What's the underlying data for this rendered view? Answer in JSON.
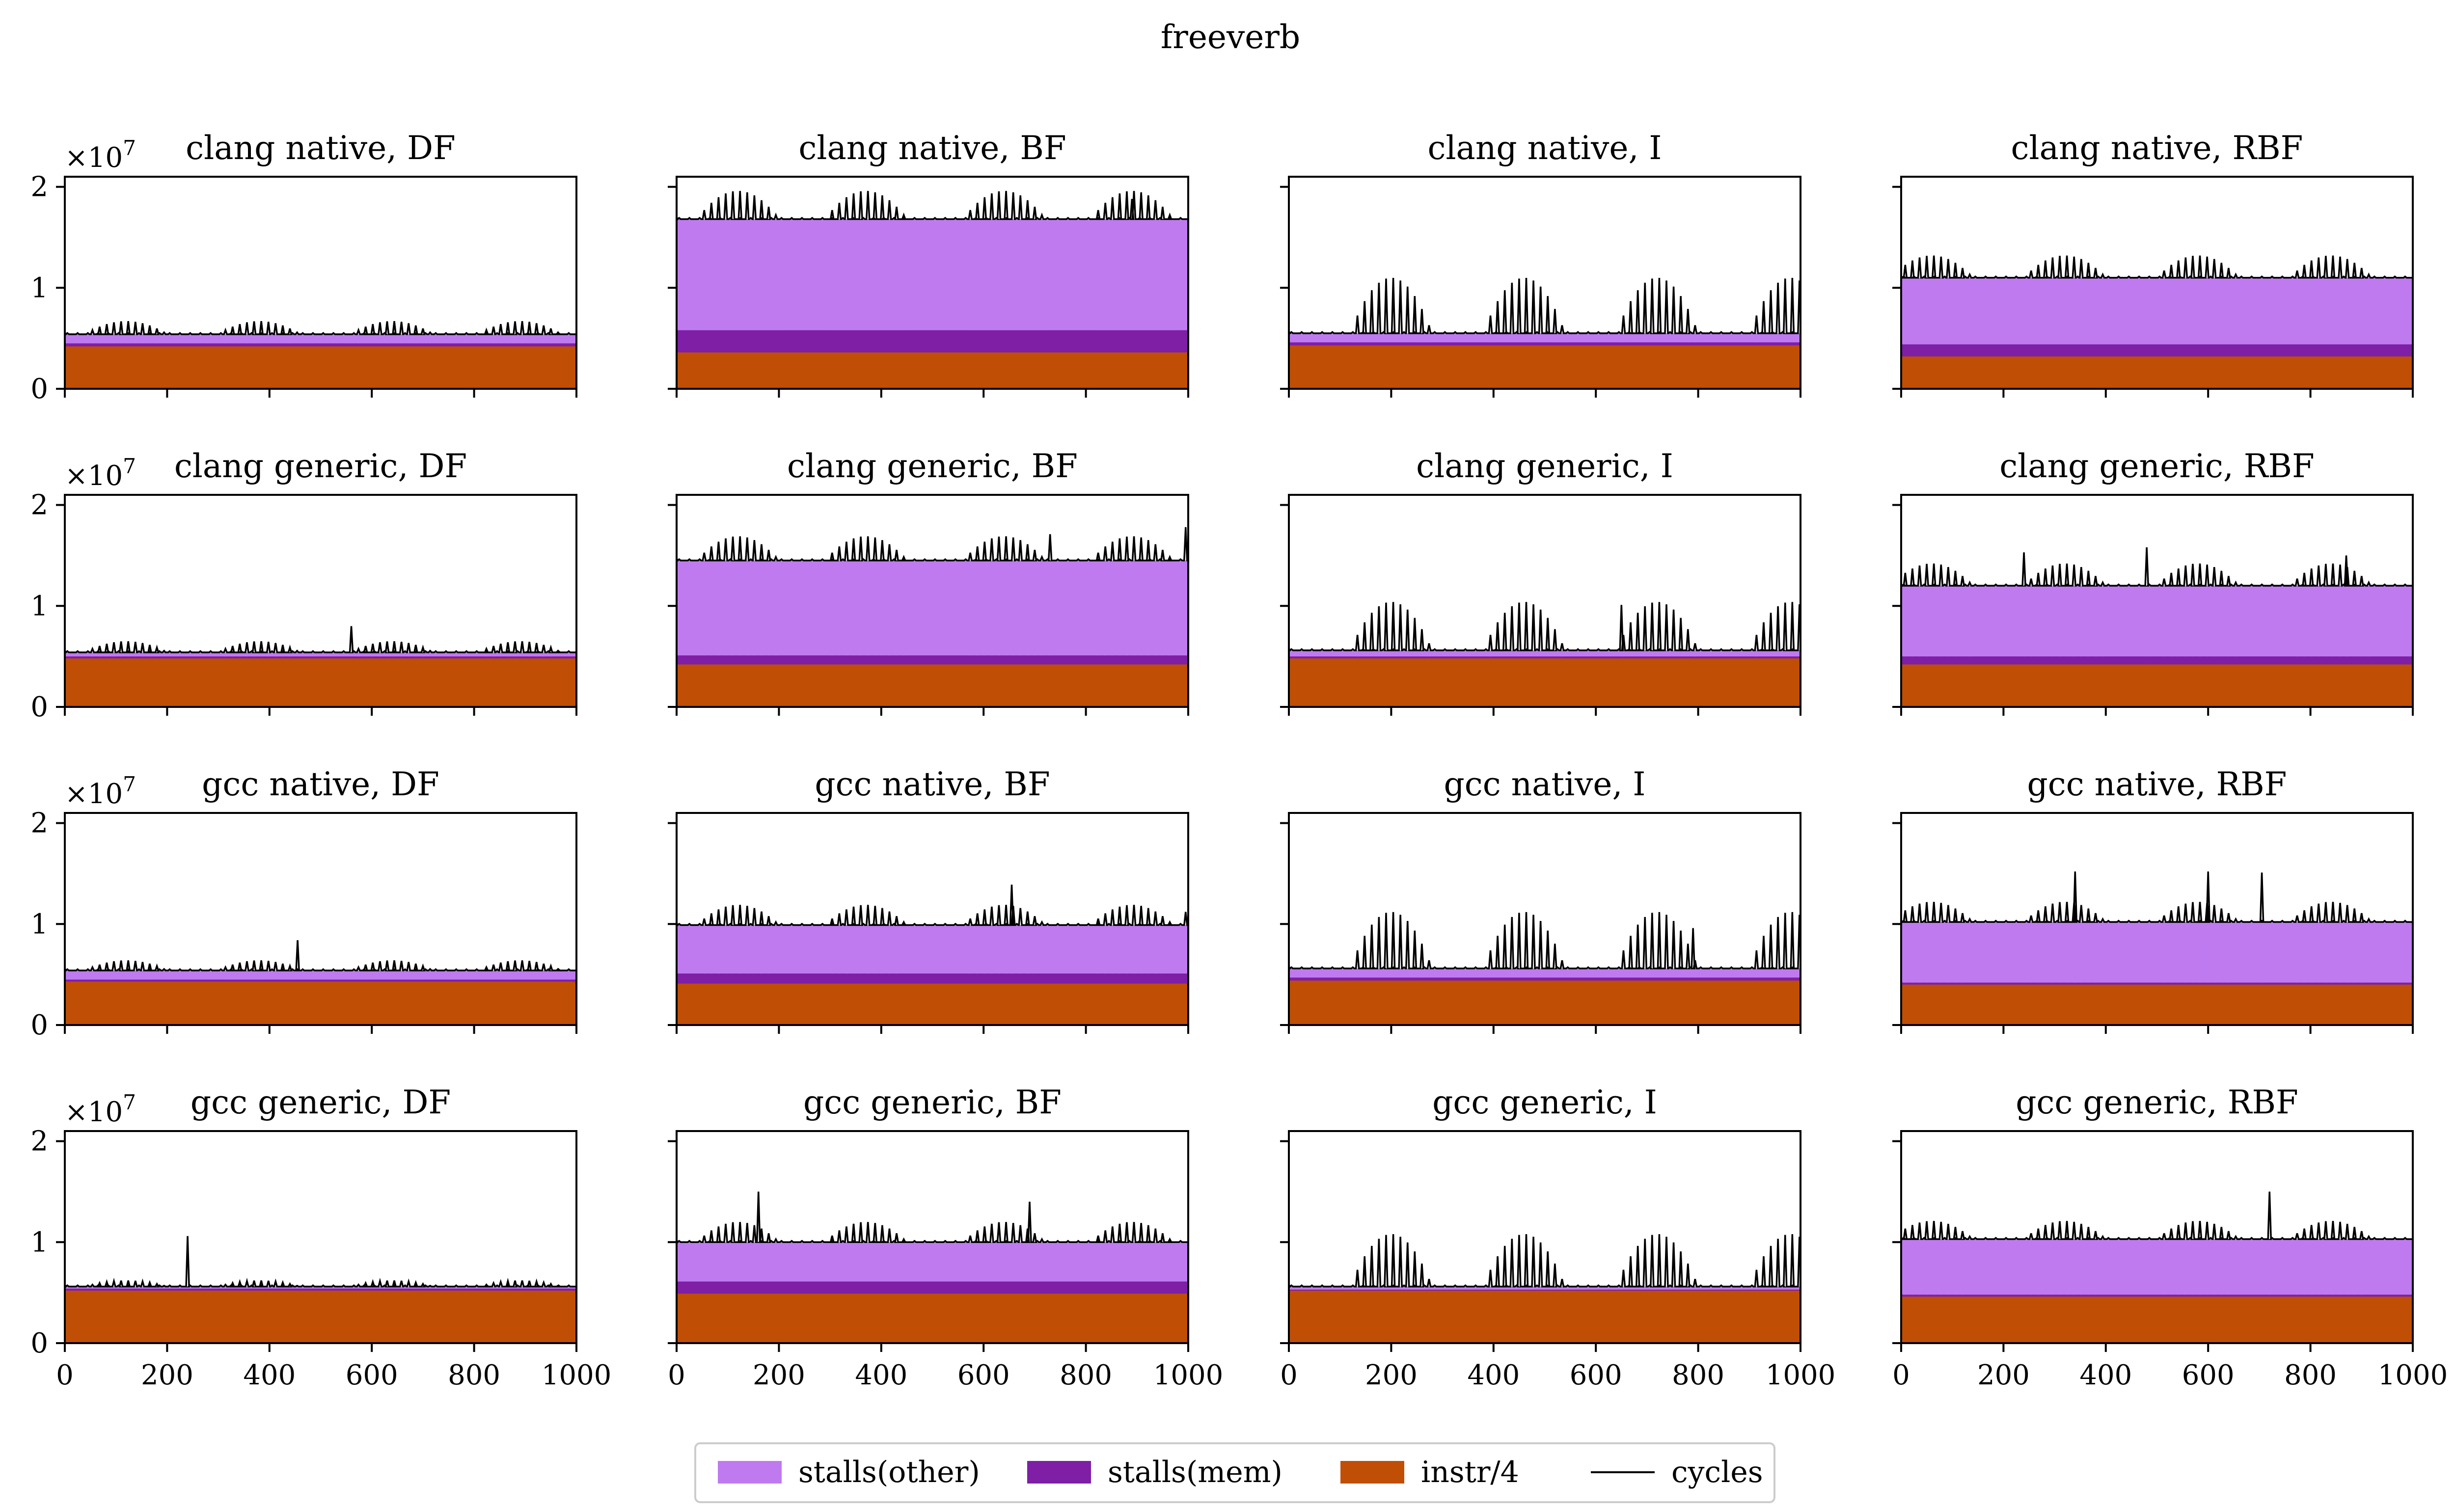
{
  "chart_data": {
    "type": "area",
    "title": "freeverb",
    "xlim": [
      0,
      1000
    ],
    "ylim": [
      0,
      21000000
    ],
    "x_ticks": [
      "0",
      "200",
      "400",
      "600",
      "800",
      "1000"
    ],
    "y_ticks": [
      "0",
      "1",
      "2"
    ],
    "y_tick_values": [
      0,
      10000000,
      20000000
    ],
    "y_multiplier": "×10",
    "y_multiplier_exp": "7",
    "legend": [
      {
        "name": "stalls(other)",
        "color": "#bf7af0",
        "kind": "area"
      },
      {
        "name": "stalls(mem)",
        "color": "#7e1fa6",
        "kind": "area"
      },
      {
        "name": "instr/4",
        "color": "#c04e05",
        "kind": "area"
      },
      {
        "name": "cycles",
        "color": "#000000",
        "kind": "line"
      }
    ],
    "colors": {
      "stalls_other": "#bf7af0",
      "stalls_mem": "#7e1fa6",
      "instr": "#c04e05",
      "cycles": "#000000"
    },
    "panels": [
      {
        "title": "clang native, DF",
        "instr": 4.2,
        "mem": 0.3,
        "cycles": 5.4,
        "burst": 1.3,
        "bursts": [
          120,
          380,
          640,
          890
        ],
        "spikes": []
      },
      {
        "title": "clang native, BF",
        "instr": 3.6,
        "mem": 2.2,
        "cycles": 16.8,
        "burst": 2.8,
        "bursts": [
          120,
          370,
          640,
          890
        ],
        "spikes": [
          [
            890,
            2.0
          ]
        ]
      },
      {
        "title": "clang native, I",
        "instr": 4.3,
        "mem": 0.3,
        "cycles": 5.5,
        "burst": 5.5,
        "bursts": [
          200,
          460,
          720,
          980
        ],
        "spikes": []
      },
      {
        "title": "clang native, RBF",
        "instr": 3.2,
        "mem": 1.2,
        "cycles": 11.0,
        "burst": 2.2,
        "bursts": [
          60,
          320,
          580,
          840
        ],
        "spikes": []
      },
      {
        "title": "clang generic, DF",
        "instr": 4.8,
        "mem": 0.2,
        "cycles": 5.4,
        "burst": 1.1,
        "bursts": [
          120,
          380,
          640,
          890
        ],
        "spikes": [
          [
            560,
            2.6
          ]
        ]
      },
      {
        "title": "clang generic, BF",
        "instr": 4.2,
        "mem": 0.9,
        "cycles": 14.5,
        "burst": 2.4,
        "bursts": [
          120,
          370,
          640,
          890
        ],
        "spikes": [
          [
            730,
            2.6
          ],
          [
            995,
            3.3
          ]
        ]
      },
      {
        "title": "clang generic, I",
        "instr": 4.8,
        "mem": 0.2,
        "cycles": 5.6,
        "burst": 4.8,
        "bursts": [
          200,
          460,
          720,
          980
        ],
        "spikes": [
          [
            650,
            4.5
          ]
        ]
      },
      {
        "title": "clang generic, RBF",
        "instr": 4.2,
        "mem": 0.8,
        "cycles": 12.0,
        "burst": 2.2,
        "bursts": [
          60,
          320,
          580,
          840
        ],
        "spikes": [
          [
            240,
            3.3
          ],
          [
            480,
            3.8
          ],
          [
            870,
            3.0
          ]
        ]
      },
      {
        "title": "gcc native, DF",
        "instr": 4.3,
        "mem": 0.2,
        "cycles": 5.4,
        "burst": 1.0,
        "bursts": [
          120,
          380,
          640,
          890
        ],
        "spikes": [
          [
            455,
            3.0
          ]
        ]
      },
      {
        "title": "gcc native, BF",
        "instr": 4.1,
        "mem": 1.0,
        "cycles": 9.9,
        "burst": 2.0,
        "bursts": [
          120,
          370,
          640,
          890
        ],
        "spikes": [
          [
            655,
            4.0
          ],
          [
            995,
            1.3
          ]
        ]
      },
      {
        "title": "gcc native, I",
        "instr": 4.4,
        "mem": 0.3,
        "cycles": 5.6,
        "burst": 5.6,
        "bursts": [
          200,
          460,
          720,
          980
        ],
        "spikes": [
          [
            790,
            4.0
          ]
        ]
      },
      {
        "title": "gcc native, RBF",
        "instr": 4.0,
        "mem": 0.2,
        "cycles": 10.2,
        "burst": 2.0,
        "bursts": [
          60,
          320,
          580,
          840
        ],
        "spikes": [
          [
            340,
            5.0
          ],
          [
            600,
            5.0
          ],
          [
            705,
            4.9
          ]
        ]
      },
      {
        "title": "gcc generic, DF",
        "instr": 5.2,
        "mem": 0.2,
        "cycles": 5.6,
        "burst": 0.6,
        "bursts": [
          120,
          380,
          640,
          890
        ],
        "spikes": [
          [
            240,
            5.0
          ]
        ]
      },
      {
        "title": "gcc generic, BF",
        "instr": 4.9,
        "mem": 1.2,
        "cycles": 10.0,
        "burst": 2.0,
        "bursts": [
          120,
          370,
          640,
          890
        ],
        "spikes": [
          [
            160,
            5.0
          ],
          [
            690,
            4.0
          ]
        ]
      },
      {
        "title": "gcc generic, I",
        "instr": 5.2,
        "mem": 0.1,
        "cycles": 5.6,
        "burst": 5.2,
        "bursts": [
          200,
          460,
          720,
          980
        ],
        "spikes": []
      },
      {
        "title": "gcc generic, RBF",
        "instr": 4.6,
        "mem": 0.2,
        "cycles": 10.3,
        "burst": 1.8,
        "bursts": [
          60,
          320,
          580,
          840
        ],
        "spikes": [
          [
            720,
            4.7
          ]
        ]
      }
    ]
  }
}
